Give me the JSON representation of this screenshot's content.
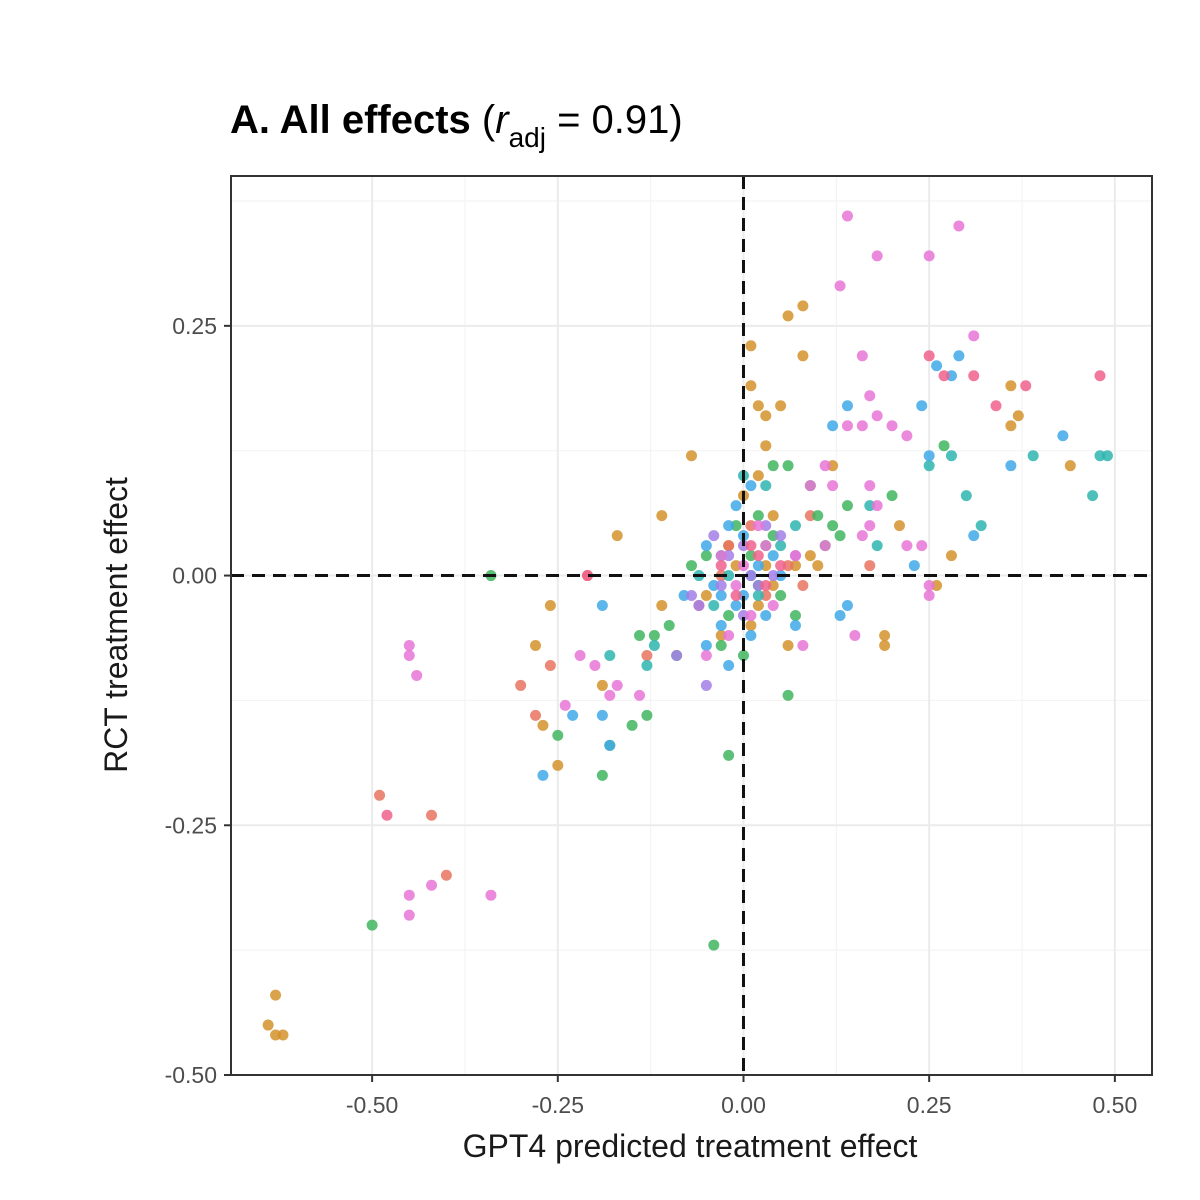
{
  "chart_data": {
    "type": "scatter",
    "title": {
      "bold": "A. All effects",
      "open": " (",
      "r": "r",
      "sub": "adj",
      "rest": " = 0.91)"
    },
    "xlabel": "GPT4 predicted treatment effect",
    "ylabel": "RCT treatment effect",
    "xlim": [
      -0.69,
      0.55
    ],
    "ylim": [
      -0.5,
      0.4
    ],
    "xticks": [
      -0.5,
      -0.25,
      0.0,
      0.25,
      0.5
    ],
    "yticks": [
      -0.5,
      -0.25,
      0.0,
      0.25
    ],
    "xtick_labels": [
      "-0.50",
      "-0.25",
      "0.00",
      "0.25",
      "0.50"
    ],
    "ytick_labels": [
      "-0.50",
      "-0.25",
      "0.00",
      "0.25"
    ],
    "grid": true,
    "reference_lines": {
      "x": 0,
      "y": 0,
      "style": "dashed"
    },
    "colors": {
      "orange": "#d4922a",
      "salmon": "#e8735f",
      "green": "#3fb55e",
      "teal": "#2fb5b0",
      "blue": "#3fa8e8",
      "purple": "#a37fe8",
      "magenta": "#e874d6",
      "pink": "#f0628c"
    },
    "series": [
      {
        "color": "#d4922a",
        "points": [
          [
            0.01,
            0.23
          ],
          [
            0.01,
            0.19
          ],
          [
            0.03,
            0.16
          ],
          [
            0.02,
            0.17
          ],
          [
            0.05,
            0.17
          ],
          [
            0.06,
            0.26
          ],
          [
            0.08,
            0.27
          ],
          [
            0.08,
            0.22
          ],
          [
            0.03,
            0.13
          ],
          [
            0.0,
            0.08
          ],
          [
            0.02,
            0.1
          ],
          [
            -0.07,
            0.12
          ],
          [
            -0.11,
            0.06
          ],
          [
            0.36,
            0.19
          ],
          [
            0.37,
            0.16
          ],
          [
            0.36,
            0.15
          ],
          [
            0.44,
            0.11
          ],
          [
            0.28,
            0.02
          ],
          [
            0.26,
            -0.01
          ],
          [
            0.19,
            -0.06
          ],
          [
            0.19,
            -0.07
          ],
          [
            0.12,
            0.11
          ],
          [
            0.06,
            -0.07
          ],
          [
            -0.63,
            -0.42
          ],
          [
            -0.64,
            -0.45
          ],
          [
            -0.63,
            -0.46
          ],
          [
            -0.62,
            -0.46
          ],
          [
            -0.25,
            -0.19
          ],
          [
            -0.27,
            -0.15
          ],
          [
            -0.26,
            -0.03
          ],
          [
            -0.11,
            -0.03
          ],
          [
            -0.17,
            0.04
          ],
          [
            -0.28,
            -0.07
          ],
          [
            -0.19,
            -0.11
          ],
          [
            0.09,
            0.02
          ],
          [
            0.04,
            0.06
          ],
          [
            0.21,
            0.05
          ],
          [
            0.07,
            0.01
          ],
          [
            -0.03,
            -0.06
          ],
          [
            -0.01,
            0.01
          ],
          [
            0.02,
            -0.03
          ],
          [
            -0.05,
            -0.02
          ],
          [
            0.01,
            -0.05
          ],
          [
            0.03,
            0.01
          ],
          [
            0.1,
            0.01
          ],
          [
            -0.02,
            0.03
          ],
          [
            0.04,
            -0.01
          ]
        ]
      },
      {
        "color": "#e8735f",
        "points": [
          [
            -0.49,
            -0.22
          ],
          [
            -0.42,
            -0.24
          ],
          [
            -0.4,
            -0.3
          ],
          [
            -0.3,
            -0.11
          ],
          [
            -0.28,
            -0.14
          ],
          [
            -0.26,
            -0.09
          ],
          [
            -0.13,
            -0.08
          ],
          [
            0.09,
            0.06
          ],
          [
            -0.21,
            0.0
          ],
          [
            -0.02,
            0.03
          ],
          [
            0.03,
            -0.02
          ],
          [
            0.06,
            0.01
          ],
          [
            -0.06,
            -0.03
          ],
          [
            0.01,
            0.05
          ],
          [
            -0.03,
            0.0
          ],
          [
            0.08,
            -0.01
          ],
          [
            0.17,
            0.01
          ]
        ]
      },
      {
        "color": "#3fb55e",
        "points": [
          [
            -0.34,
            0.0
          ],
          [
            -0.5,
            -0.35
          ],
          [
            -0.04,
            -0.37
          ],
          [
            -0.02,
            -0.18
          ],
          [
            -0.19,
            -0.2
          ],
          [
            -0.18,
            -0.17
          ],
          [
            -0.25,
            -0.16
          ],
          [
            -0.15,
            -0.15
          ],
          [
            -0.13,
            -0.14
          ],
          [
            -0.14,
            -0.06
          ],
          [
            -0.12,
            -0.06
          ],
          [
            -0.09,
            -0.08
          ],
          [
            0.06,
            -0.12
          ],
          [
            0.04,
            0.11
          ],
          [
            0.06,
            0.11
          ],
          [
            0.02,
            0.06
          ],
          [
            0.12,
            0.05
          ],
          [
            0.09,
            0.09
          ],
          [
            0.2,
            0.08
          ],
          [
            0.27,
            0.13
          ],
          [
            0.14,
            0.07
          ],
          [
            0.11,
            0.03
          ],
          [
            0.0,
            -0.08
          ],
          [
            -0.07,
            0.01
          ],
          [
            -0.03,
            -0.07
          ],
          [
            0.05,
            -0.02
          ],
          [
            0.02,
            -0.01
          ],
          [
            -0.01,
            0.05
          ],
          [
            0.04,
            0.04
          ],
          [
            0.1,
            0.06
          ],
          [
            0.07,
            -0.04
          ],
          [
            -0.05,
            0.02
          ],
          [
            0.01,
            0.02
          ],
          [
            -0.02,
            -0.04
          ],
          [
            0.03,
            0.03
          ],
          [
            0.13,
            0.04
          ],
          [
            -0.1,
            -0.05
          ]
        ]
      },
      {
        "color": "#2fb5b0",
        "points": [
          [
            0.39,
            0.12
          ],
          [
            0.47,
            0.08
          ],
          [
            0.48,
            0.12
          ],
          [
            0.49,
            0.12
          ],
          [
            0.3,
            0.08
          ],
          [
            0.32,
            0.05
          ],
          [
            0.28,
            0.12
          ],
          [
            0.25,
            0.11
          ],
          [
            0.17,
            0.07
          ],
          [
            0.18,
            0.03
          ],
          [
            0.07,
            0.05
          ],
          [
            0.03,
            0.09
          ],
          [
            0.0,
            0.1
          ],
          [
            -0.06,
            0.0
          ],
          [
            -0.02,
            0.0
          ],
          [
            -0.04,
            -0.03
          ],
          [
            -0.12,
            -0.07
          ],
          [
            -0.18,
            -0.08
          ],
          [
            -0.13,
            -0.09
          ],
          [
            0.05,
            0.03
          ],
          [
            0.01,
            0.0
          ],
          [
            -0.03,
            0.02
          ],
          [
            0.02,
            -0.02
          ]
        ]
      },
      {
        "color": "#3fa8e8",
        "points": [
          [
            0.26,
            0.21
          ],
          [
            0.29,
            0.22
          ],
          [
            0.28,
            0.2
          ],
          [
            0.24,
            0.17
          ],
          [
            0.14,
            0.17
          ],
          [
            0.12,
            0.15
          ],
          [
            0.36,
            0.11
          ],
          [
            0.43,
            0.14
          ],
          [
            0.25,
            0.12
          ],
          [
            0.23,
            0.01
          ],
          [
            0.31,
            0.04
          ],
          [
            -0.19,
            -0.03
          ],
          [
            -0.19,
            -0.14
          ],
          [
            -0.18,
            -0.17
          ],
          [
            -0.23,
            -0.14
          ],
          [
            -0.27,
            -0.2
          ],
          [
            -0.05,
            -0.07
          ],
          [
            -0.03,
            -0.05
          ],
          [
            0.0,
            -0.02
          ],
          [
            0.01,
            0.09
          ],
          [
            -0.05,
            0.03
          ],
          [
            -0.02,
            0.05
          ],
          [
            -0.04,
            -0.01
          ],
          [
            -0.01,
            -0.03
          ],
          [
            0.02,
            0.01
          ],
          [
            0.03,
            -0.04
          ],
          [
            0.14,
            -0.03
          ],
          [
            0.13,
            -0.04
          ],
          [
            0.07,
            -0.05
          ],
          [
            -0.02,
            -0.09
          ],
          [
            -0.08,
            -0.02
          ],
          [
            0.0,
            0.04
          ],
          [
            0.05,
            0.0
          ],
          [
            -0.03,
            -0.02
          ],
          [
            0.01,
            -0.06
          ],
          [
            0.04,
            0.02
          ],
          [
            -0.01,
            0.07
          ]
        ]
      },
      {
        "color": "#a37fe8",
        "points": [
          [
            -0.05,
            -0.11
          ],
          [
            -0.09,
            -0.08
          ],
          [
            -0.07,
            -0.02
          ],
          [
            -0.03,
            -0.01
          ],
          [
            0.0,
            0.03
          ],
          [
            0.02,
            -0.01
          ],
          [
            0.05,
            0.04
          ],
          [
            -0.04,
            0.04
          ],
          [
            0.01,
            0.0
          ],
          [
            -0.02,
            0.02
          ],
          [
            0.03,
            0.05
          ],
          [
            0.07,
            0.02
          ],
          [
            0.0,
            -0.04
          ],
          [
            -0.06,
            -0.03
          ],
          [
            0.04,
            0.0
          ]
        ]
      },
      {
        "color": "#e874d6",
        "points": [
          [
            0.14,
            0.36
          ],
          [
            0.29,
            0.35
          ],
          [
            0.25,
            0.32
          ],
          [
            0.18,
            0.32
          ],
          [
            0.13,
            0.29
          ],
          [
            0.31,
            0.24
          ],
          [
            0.16,
            0.22
          ],
          [
            0.17,
            0.18
          ],
          [
            0.16,
            0.15
          ],
          [
            0.18,
            0.16
          ],
          [
            0.2,
            0.15
          ],
          [
            0.22,
            0.14
          ],
          [
            0.14,
            0.15
          ],
          [
            0.17,
            0.09
          ],
          [
            0.18,
            0.07
          ],
          [
            0.11,
            0.11
          ],
          [
            0.12,
            0.09
          ],
          [
            0.09,
            0.09
          ],
          [
            0.16,
            0.04
          ],
          [
            0.17,
            0.05
          ],
          [
            0.24,
            0.03
          ],
          [
            0.22,
            0.03
          ],
          [
            0.25,
            -0.01
          ],
          [
            0.25,
            -0.02
          ],
          [
            0.15,
            -0.06
          ],
          [
            0.08,
            -0.07
          ],
          [
            -0.45,
            -0.07
          ],
          [
            -0.45,
            -0.08
          ],
          [
            -0.44,
            -0.1
          ],
          [
            -0.45,
            -0.32
          ],
          [
            -0.45,
            -0.34
          ],
          [
            -0.42,
            -0.31
          ],
          [
            -0.34,
            -0.32
          ],
          [
            -0.22,
            -0.08
          ],
          [
            -0.2,
            -0.09
          ],
          [
            -0.18,
            -0.12
          ],
          [
            -0.17,
            -0.11
          ],
          [
            -0.14,
            -0.12
          ],
          [
            -0.24,
            -0.13
          ],
          [
            -0.05,
            -0.08
          ],
          [
            -0.02,
            -0.06
          ],
          [
            0.01,
            -0.04
          ],
          [
            0.04,
            -0.03
          ],
          [
            0.03,
            0.03
          ],
          [
            -0.03,
            0.02
          ],
          [
            0.07,
            0.02
          ],
          [
            0.0,
            0.01
          ],
          [
            0.11,
            0.03
          ],
          [
            -0.01,
            -0.01
          ],
          [
            0.02,
            0.05
          ]
        ]
      },
      {
        "color": "#f0628c",
        "points": [
          [
            0.25,
            0.22
          ],
          [
            0.27,
            0.2
          ],
          [
            0.31,
            0.2
          ],
          [
            0.34,
            0.17
          ],
          [
            0.38,
            0.19
          ],
          [
            0.48,
            0.2
          ],
          [
            -0.48,
            -0.24
          ],
          [
            -0.21,
            0.0
          ],
          [
            0.02,
            0.02
          ],
          [
            -0.01,
            -0.02
          ],
          [
            0.05,
            0.01
          ],
          [
            0.03,
            -0.01
          ],
          [
            -0.03,
            0.01
          ],
          [
            0.01,
            0.03
          ]
        ]
      }
    ]
  }
}
